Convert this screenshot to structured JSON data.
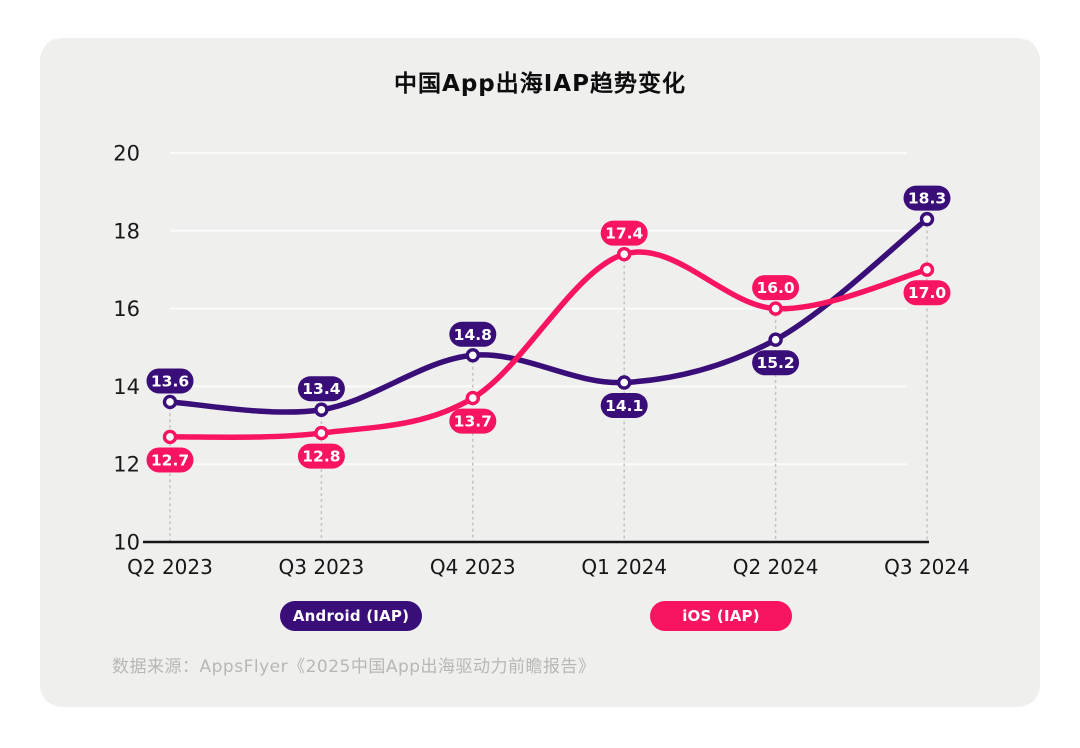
{
  "page": {
    "background": "#ffffff",
    "card_background": "#efefee"
  },
  "chart_data": {
    "type": "line",
    "title": "中国App出海IAP趋势变化",
    "categories": [
      "Q2 2023",
      "Q3 2023",
      "Q4 2023",
      "Q1 2024",
      "Q2 2024",
      "Q3 2024"
    ],
    "series": [
      {
        "name": "Android (IAP)",
        "color": "#3a0e78",
        "values": [
          13.6,
          13.4,
          14.8,
          14.1,
          15.2,
          18.3
        ]
      },
      {
        "name": "iOS (IAP)",
        "color": "#f81460",
        "values": [
          12.7,
          12.8,
          13.7,
          17.4,
          16.0,
          17.0
        ]
      }
    ],
    "ylim": [
      10,
      20
    ],
    "yticks": [
      10,
      12,
      14,
      16,
      18,
      20
    ],
    "xlabel": "",
    "ylabel": "",
    "grid": {
      "horizontal": "solid white line at each ytick above baseline",
      "vertical": "gray dotted line at each category from top data point to axis"
    },
    "legend_position": "bottom",
    "point_labels": "each point labeled with value to one decimal in a colored pill badge",
    "marker": "open circle (white fill, colored ring)",
    "line_style": "smooth curve"
  },
  "axis_colors": {
    "axis_line": "#161616",
    "tick_label": "#191919",
    "h_gridline": "#fbfbfb",
    "v_gridline": "#c6c4c2"
  },
  "source": {
    "text": "数据来源：AppsFlyer《2025中国App出海驱动力前瞻报告》"
  }
}
